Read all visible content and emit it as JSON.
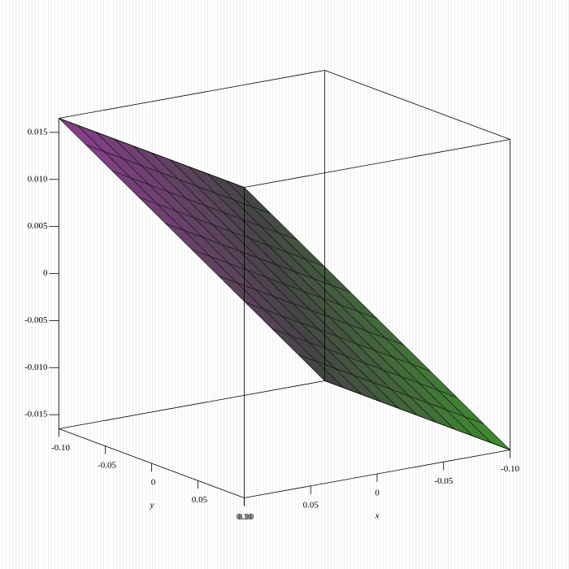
{
  "chart_data": {
    "type": "surface3d",
    "xlabel": "x",
    "ylabel": "y",
    "x": [
      -0.1,
      -0.08,
      -0.06,
      -0.04,
      -0.02,
      0,
      0.02,
      0.04,
      0.06,
      0.08,
      0.1
    ],
    "y": [
      -0.1,
      -0.08,
      -0.06,
      -0.04,
      -0.02,
      0,
      0.02,
      0.04,
      0.06,
      0.08,
      0.1
    ],
    "z": [
      [
        -0.0165,
        -0.0132,
        -0.0099,
        -0.0066,
        -0.0033,
        0,
        0.0033,
        0.0066,
        0.0099,
        0.0132,
        0.0165
      ],
      [
        -0.0165,
        -0.0132,
        -0.0099,
        -0.0066,
        -0.0033,
        0,
        0.0033,
        0.0066,
        0.0099,
        0.0132,
        0.0165
      ],
      [
        -0.0165,
        -0.0132,
        -0.0099,
        -0.0066,
        -0.0033,
        0,
        0.0033,
        0.0066,
        0.0099,
        0.0132,
        0.0165
      ],
      [
        -0.0165,
        -0.0132,
        -0.0099,
        -0.0066,
        -0.0033,
        0,
        0.0033,
        0.0066,
        0.0099,
        0.0132,
        0.0165
      ],
      [
        -0.0165,
        -0.0132,
        -0.0099,
        -0.0066,
        -0.0033,
        0,
        0.0033,
        0.0066,
        0.0099,
        0.0132,
        0.0165
      ],
      [
        -0.0165,
        -0.0132,
        -0.0099,
        -0.0066,
        -0.0033,
        0,
        0.0033,
        0.0066,
        0.0099,
        0.0132,
        0.0165
      ],
      [
        -0.0165,
        -0.0132,
        -0.0099,
        -0.0066,
        -0.0033,
        0,
        0.0033,
        0.0066,
        0.0099,
        0.0132,
        0.0165
      ],
      [
        -0.0165,
        -0.0132,
        -0.0099,
        -0.0066,
        -0.0033,
        0,
        0.0033,
        0.0066,
        0.0099,
        0.0132,
        0.0165
      ],
      [
        -0.0165,
        -0.0132,
        -0.0099,
        -0.0066,
        -0.0033,
        0,
        0.0033,
        0.0066,
        0.0099,
        0.0132,
        0.0165
      ],
      [
        -0.0165,
        -0.0132,
        -0.0099,
        -0.0066,
        -0.0033,
        0,
        0.0033,
        0.0066,
        0.0099,
        0.0132,
        0.0165
      ],
      [
        -0.0165,
        -0.0132,
        -0.0099,
        -0.0066,
        -0.0033,
        0,
        0.0033,
        0.0066,
        0.0099,
        0.0132,
        0.0165
      ]
    ],
    "xlim": [
      -0.1,
      0.1
    ],
    "ylim": [
      -0.1,
      0.1
    ],
    "zlim": [
      -0.0165,
      0.0165
    ],
    "xticks": [
      {
        "value": -0.1,
        "label": "-0.10"
      },
      -0.05,
      0,
      0.05,
      {
        "value": 0.1,
        "label": "0.10"
      }
    ],
    "yticks": [
      {
        "value": -0.1,
        "label": "-0.10"
      },
      -0.05,
      0,
      0.05,
      {
        "value": 0.1,
        "label": "0.10"
      }
    ],
    "zticks": [
      -0.015,
      {
        "value": -0.01,
        "label": "-0.010"
      },
      -0.005,
      0,
      0.005,
      {
        "value": 0.01,
        "label": "0.010"
      },
      0.015
    ],
    "colormap": [
      "#3f8f2f",
      "#454545",
      "#8d3d91"
    ]
  }
}
